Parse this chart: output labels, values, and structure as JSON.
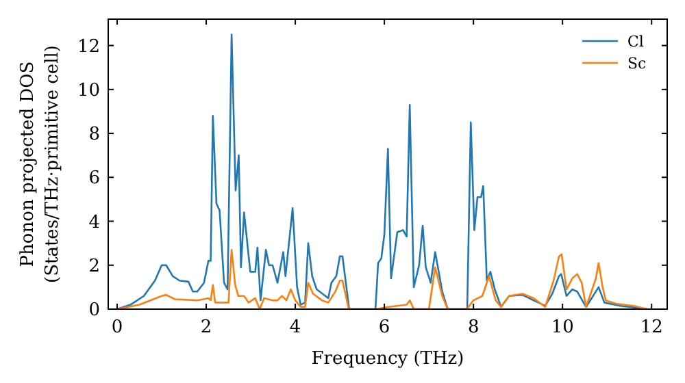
{
  "chart_data": {
    "type": "line",
    "xlabel": "Frequency (THz)",
    "ylabel": "Phonon projected DOS\n(States/THz·primitive cell)",
    "xlim": [
      -0.2,
      12.35
    ],
    "ylim": [
      0,
      13.2
    ],
    "xticks": [
      0,
      2,
      4,
      6,
      8,
      10,
      12
    ],
    "yticks": [
      0,
      2,
      4,
      6,
      8,
      10,
      12
    ],
    "legend": "top right",
    "grid": false,
    "line_style": "solid",
    "marker": "none",
    "series": [
      {
        "name": "Cl",
        "color": "#1f77b4",
        "x": [
          0,
          0.3,
          0.6,
          0.85,
          1.0,
          1.1,
          1.25,
          1.4,
          1.6,
          1.7,
          1.8,
          1.95,
          2.05,
          2.1,
          2.15,
          2.23,
          2.3,
          2.4,
          2.48,
          2.57,
          2.66,
          2.73,
          2.78,
          2.85,
          2.99,
          3.1,
          3.15,
          3.22,
          3.34,
          3.41,
          3.49,
          3.6,
          3.73,
          3.78,
          3.94,
          4.04,
          4.12,
          4.22,
          4.29,
          4.38,
          4.48,
          4.74,
          4.81,
          4.92,
          5.0,
          5.06,
          5.21,
          5.8,
          5.86,
          5.93,
          6.0,
          6.08,
          6.15,
          6.29,
          6.42,
          6.5,
          6.57,
          6.66,
          6.78,
          6.86,
          6.93,
          7.04,
          7.14,
          7.3,
          7.42,
          7.86,
          7.94,
          8.02,
          8.09,
          8.17,
          8.22,
          8.3,
          8.38,
          8.48,
          8.62,
          8.8,
          9.1,
          9.35,
          9.61,
          9.77,
          9.92,
          9.97,
          10.09,
          10.22,
          10.33,
          10.53,
          10.81,
          10.94,
          11.3,
          11.7,
          11.9
        ],
        "values": [
          0,
          0.2,
          0.6,
          1.3,
          2.0,
          2.0,
          1.5,
          1.3,
          1.25,
          0.8,
          0.8,
          1.2,
          2.2,
          2.2,
          8.8,
          4.8,
          4.5,
          1.2,
          0.9,
          12.5,
          5.4,
          7.0,
          1.9,
          4.4,
          1.7,
          1.7,
          2.8,
          0.4,
          2.7,
          2.0,
          2.0,
          1.2,
          2.6,
          1.5,
          4.6,
          1.0,
          0.2,
          0.3,
          3.0,
          1.5,
          0.9,
          0.5,
          1.2,
          1.5,
          2.4,
          2.4,
          0,
          0,
          2.1,
          2.3,
          3.4,
          7.3,
          1.4,
          3.5,
          3.6,
          3.3,
          9.3,
          1.0,
          2.0,
          3.8,
          1.9,
          1.2,
          2.6,
          0.8,
          0,
          0,
          8.5,
          3.6,
          5.1,
          5.1,
          5.6,
          1.3,
          1.7,
          0.9,
          0.1,
          0.6,
          0.65,
          0.4,
          0.15,
          0.7,
          1.5,
          1.6,
          0.6,
          0.9,
          0.8,
          0.1,
          1.0,
          0.3,
          0.15,
          0.05,
          0
        ]
      },
      {
        "name": "Sc",
        "color": "#ff7f0e",
        "x": [
          0,
          0.5,
          1.0,
          1.1,
          1.3,
          1.8,
          2.05,
          2.1,
          2.15,
          2.2,
          2.5,
          2.57,
          2.65,
          2.72,
          2.85,
          2.95,
          3.1,
          3.2,
          3.3,
          3.5,
          3.6,
          3.7,
          3.8,
          3.9,
          4.0,
          4.12,
          4.22,
          4.29,
          4.4,
          4.6,
          4.74,
          4.9,
          5.0,
          5.06,
          5.2,
          5.8,
          6.1,
          6.5,
          6.57,
          6.66,
          7.0,
          7.14,
          7.3,
          7.42,
          7.85,
          8.0,
          8.2,
          8.35,
          8.5,
          8.62,
          8.8,
          9.1,
          9.35,
          9.61,
          9.8,
          9.92,
          9.98,
          10.09,
          10.22,
          10.33,
          10.43,
          10.53,
          10.75,
          10.81,
          10.9,
          10.97,
          11.2,
          11.6,
          11.9
        ],
        "values": [
          0,
          0.2,
          0.6,
          0.65,
          0.45,
          0.4,
          0.5,
          0.4,
          1.1,
          0.3,
          0.3,
          2.7,
          1.1,
          0.6,
          0.6,
          0.3,
          0.5,
          0,
          0.5,
          0.4,
          0.4,
          0.6,
          0.4,
          0.9,
          0.4,
          0.1,
          0.1,
          1.2,
          0.7,
          0.4,
          0.3,
          0.8,
          1.3,
          1.3,
          0,
          0,
          0.1,
          0.2,
          0.4,
          0,
          0,
          1.9,
          0.6,
          0,
          0,
          0.4,
          0.6,
          1.5,
          0.4,
          0.1,
          0.6,
          0.7,
          0.5,
          0.1,
          1.3,
          2.4,
          2.5,
          0.9,
          1.4,
          1.6,
          1.2,
          0.1,
          1.4,
          2.1,
          1.0,
          0.4,
          0.25,
          0.15,
          0
        ]
      }
    ]
  }
}
